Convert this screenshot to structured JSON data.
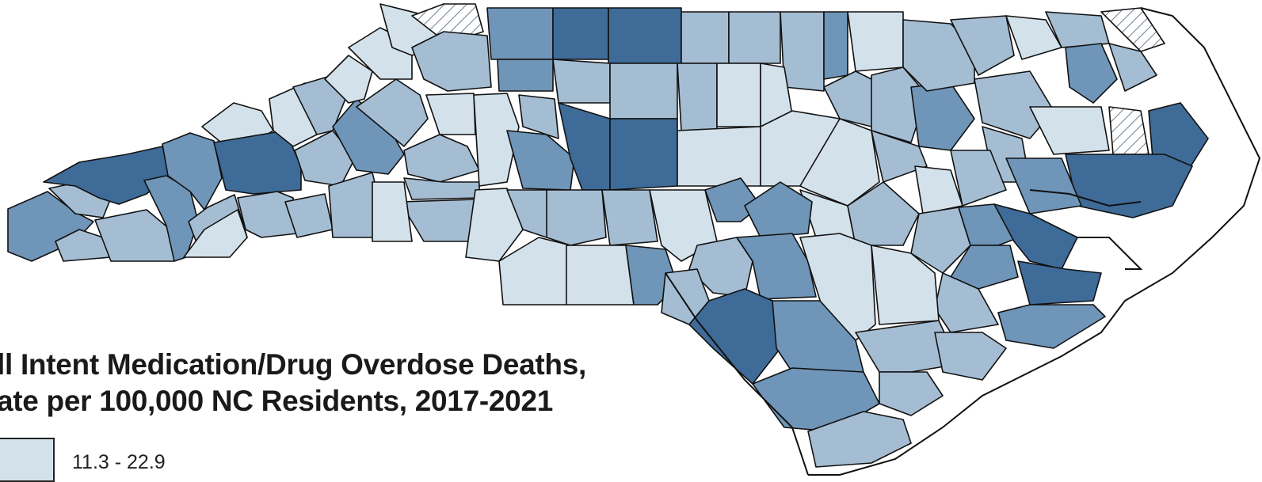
{
  "legend": {
    "title_line1": "ll Intent Medication/Drug Overdose Deaths,",
    "title_line2": "ate per 100,000 NC Residents, 2017-2021",
    "classes": [
      {
        "label": "11.3 - 22.9",
        "color": "#d3e1ea"
      }
    ]
  },
  "palette": {
    "lightest": "#d3e1ea",
    "light": "#a4bdd3",
    "medium": "#6f95b8",
    "dark": "#3f6b98",
    "border": "#111111",
    "background": "#ffffff"
  }
}
